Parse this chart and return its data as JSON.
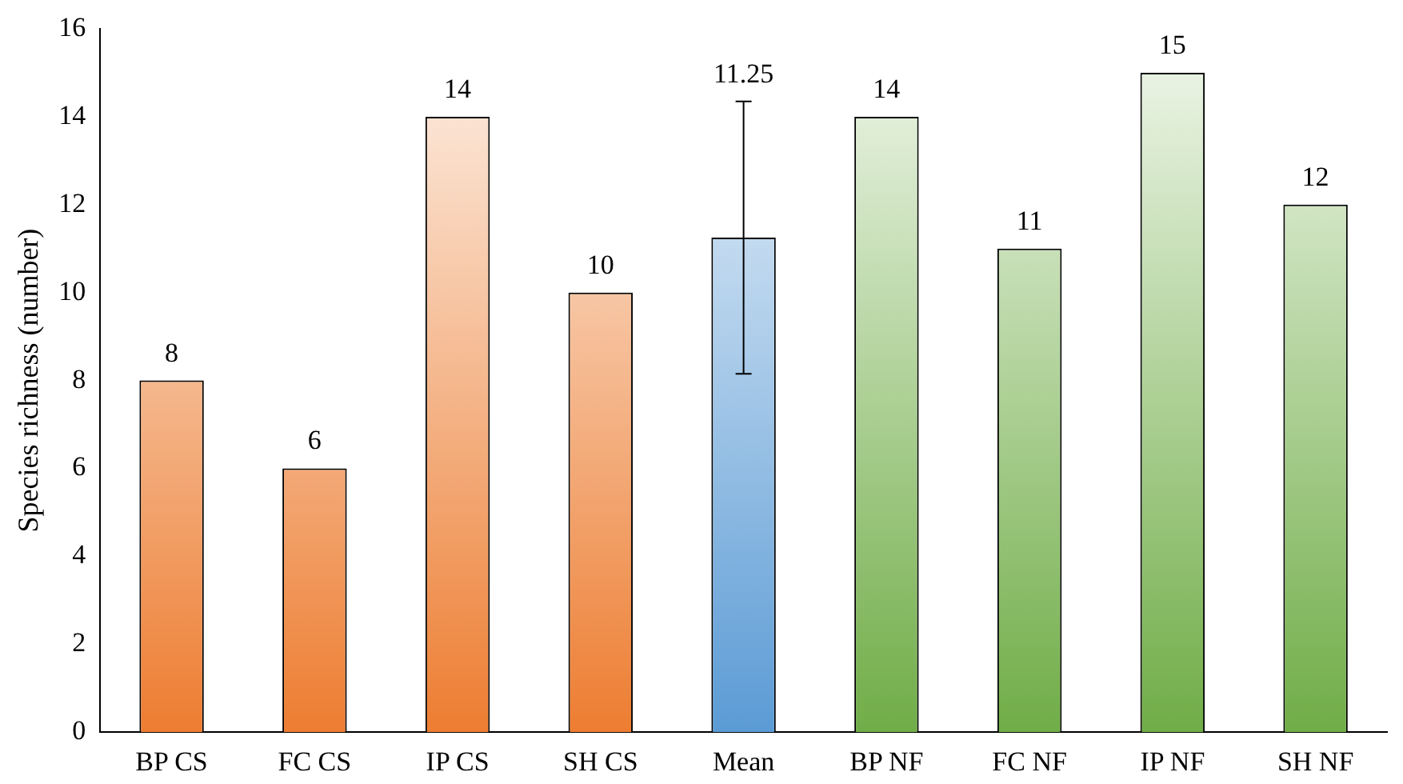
{
  "chart_data": {
    "type": "bar",
    "ylabel": "Species richness (number)",
    "categories": [
      "BP CS",
      "FC CS",
      "IP CS",
      "SH CS",
      "Mean",
      "BP NF",
      "FC NF",
      "IP NF",
      "SH NF"
    ],
    "values": [
      8,
      6,
      14,
      10,
      11.25,
      14,
      11,
      15,
      12
    ],
    "colors": [
      "#ed7d31",
      "#ed7d31",
      "#ed7d31",
      "#ed7d31",
      "#5b9bd5",
      "#70ad47",
      "#70ad47",
      "#70ad47",
      "#70ad47"
    ],
    "errors": [
      null,
      null,
      null,
      null,
      3.1,
      null,
      null,
      null,
      null
    ],
    "ylim": [
      0,
      16
    ],
    "yticks": [
      0,
      2,
      4,
      6,
      8,
      10,
      12,
      14,
      16
    ],
    "grid": false,
    "legend": false,
    "value_labels": [
      "8",
      "6",
      "14",
      "10",
      null,
      "14",
      "11",
      "15",
      "12"
    ],
    "annotations": [
      {
        "text": "11.25",
        "x": "Mean",
        "y": 14.35
      }
    ]
  }
}
